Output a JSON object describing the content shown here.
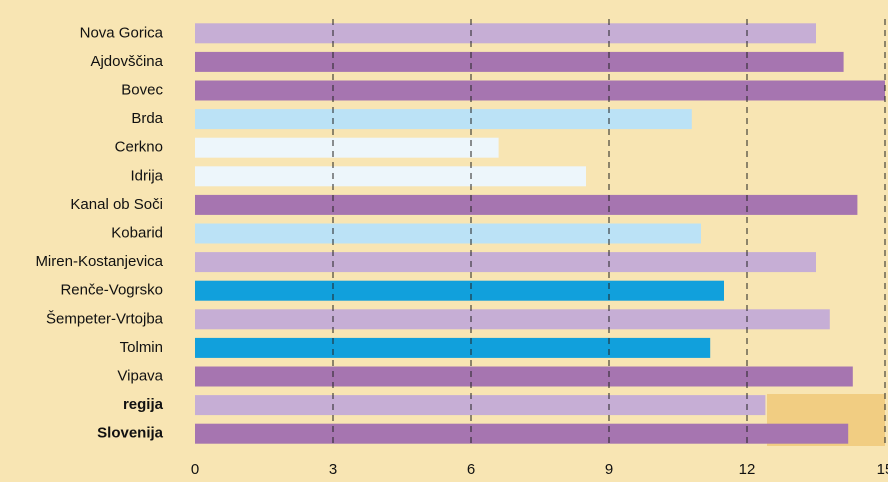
{
  "chart_data": {
    "type": "barh",
    "categories": [
      "Nova Gorica",
      "Ajdovščina",
      "Bovec",
      "Brda",
      "Cerkno",
      "Idrija",
      "Kanal ob Soči",
      "Kobarid",
      "Miren-Kostanjevica",
      "Renče-Vogrsko",
      "Šempeter-Vrtojba",
      "Tolmin",
      "Vipava",
      "regija",
      "Slovenija"
    ],
    "values": [
      13.5,
      14.1,
      15.0,
      10.8,
      6.6,
      8.5,
      14.4,
      11.0,
      13.5,
      11.5,
      13.8,
      11.2,
      14.3,
      12.4,
      14.2
    ],
    "colors": [
      "#c6aed5",
      "#a675b0",
      "#a675b0",
      "#bbe2f6",
      "#edf6fb",
      "#edf6fb",
      "#a675b0",
      "#bbe2f6",
      "#c6aed5",
      "#11a0dc",
      "#c6aed5",
      "#11a0dc",
      "#a675b0",
      "#c6aed5",
      "#a675b0"
    ],
    "bold": [
      false,
      false,
      false,
      false,
      false,
      false,
      false,
      false,
      false,
      false,
      false,
      false,
      false,
      true,
      true
    ],
    "xlim": [
      0,
      15
    ],
    "xticks": [
      0,
      3,
      6,
      9,
      12,
      15
    ],
    "grid": true
  }
}
